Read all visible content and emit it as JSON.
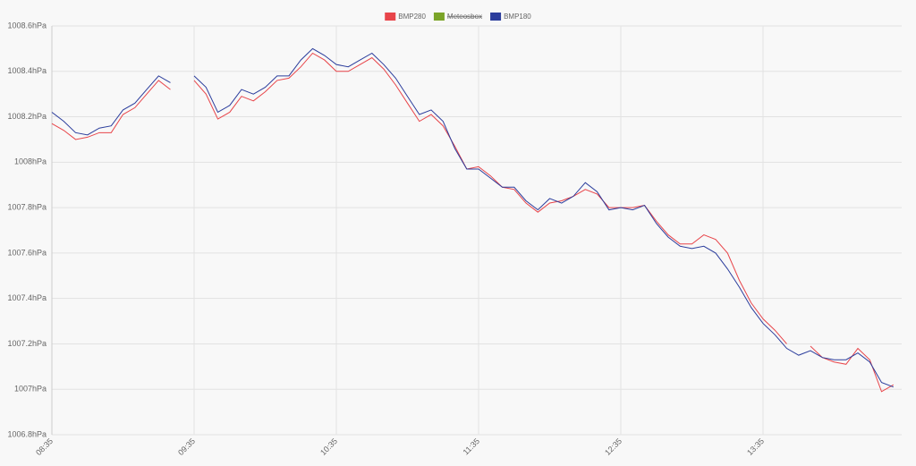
{
  "chart_data": {
    "type": "line",
    "categories": [
      "08:35",
      null,
      null,
      null,
      null,
      null,
      null,
      null,
      null,
      null,
      null,
      null,
      "09:35",
      null,
      null,
      null,
      null,
      null,
      null,
      null,
      null,
      null,
      null,
      null,
      "10:35",
      null,
      null,
      null,
      null,
      null,
      null,
      null,
      null,
      null,
      null,
      null,
      "11:35",
      null,
      null,
      null,
      null,
      null,
      null,
      null,
      null,
      null,
      null,
      null,
      "12:35",
      null,
      null,
      null,
      null,
      null,
      null,
      null,
      null,
      null,
      null,
      null,
      "13:35",
      null,
      null,
      null,
      null,
      null,
      null,
      null,
      null,
      null,
      null,
      null
    ],
    "series": [
      {
        "name": "BMP280",
        "color": "#e8454a",
        "values": [
          1008.17,
          1008.14,
          1008.1,
          1008.11,
          1008.13,
          1008.13,
          1008.21,
          1008.24,
          1008.3,
          1008.36,
          1008.32,
          null,
          1008.36,
          1008.3,
          1008.19,
          1008.22,
          1008.29,
          1008.27,
          1008.31,
          1008.36,
          1008.37,
          1008.42,
          1008.48,
          1008.45,
          1008.4,
          1008.4,
          1008.43,
          1008.46,
          1008.41,
          1008.34,
          1008.26,
          1008.18,
          1008.21,
          1008.16,
          1008.07,
          1007.97,
          1007.98,
          1007.94,
          1007.89,
          1007.88,
          1007.82,
          1007.78,
          1007.82,
          1007.83,
          1007.85,
          1007.88,
          1007.86,
          1007.8,
          1007.8,
          1007.8,
          1007.81,
          1007.74,
          1007.68,
          1007.64,
          1007.64,
          1007.68,
          1007.66,
          1007.6,
          1007.48,
          1007.38,
          1007.31,
          1007.26,
          1007.2,
          null,
          1007.19,
          1007.14,
          1007.12,
          1007.11,
          1007.18,
          1007.13,
          1006.99,
          1007.02
        ]
      },
      {
        "name": "Meteosbox",
        "color": "#7ba428",
        "hidden": true
      },
      {
        "name": "BMP180",
        "color": "#2b3d9c",
        "values": [
          1008.22,
          1008.18,
          1008.13,
          1008.12,
          1008.15,
          1008.16,
          1008.23,
          1008.26,
          1008.32,
          1008.38,
          1008.35,
          null,
          1008.38,
          1008.33,
          1008.22,
          1008.25,
          1008.32,
          1008.3,
          1008.33,
          1008.38,
          1008.38,
          1008.45,
          1008.5,
          1008.47,
          1008.43,
          1008.42,
          1008.45,
          1008.48,
          1008.43,
          1008.37,
          1008.29,
          1008.21,
          1008.23,
          1008.18,
          1008.06,
          1007.97,
          1007.97,
          1007.93,
          1007.89,
          1007.89,
          1007.83,
          1007.79,
          1007.84,
          1007.82,
          1007.85,
          1007.91,
          1007.87,
          1007.79,
          1007.8,
          1007.79,
          1007.81,
          1007.73,
          1007.67,
          1007.63,
          1007.62,
          1007.63,
          1007.6,
          1007.53,
          1007.45,
          1007.36,
          1007.29,
          1007.24,
          1007.18,
          1007.15,
          1007.17,
          1007.14,
          1007.13,
          1007.13,
          1007.16,
          1007.12,
          1007.03,
          1007.01
        ]
      }
    ],
    "ylim": [
      1006.8,
      1008.6
    ],
    "yticks": [
      {
        "value": 1006.8,
        "label": "1006.8hPa"
      },
      {
        "value": 1007,
        "label": "1007hPa"
      },
      {
        "value": 1007.2,
        "label": "1007.2hPa"
      },
      {
        "value": 1007.4,
        "label": "1007.4hPa"
      },
      {
        "value": 1007.6,
        "label": "1007.6hPa"
      },
      {
        "value": 1007.8,
        "label": "1007.8hPa"
      },
      {
        "value": 1008,
        "label": "1008hPa"
      },
      {
        "value": 1008.2,
        "label": "1008.2hPa"
      },
      {
        "value": 1008.4,
        "label": "1008.4hPa"
      },
      {
        "value": 1008.6,
        "label": "1008.6hPa"
      }
    ],
    "grid": true
  }
}
